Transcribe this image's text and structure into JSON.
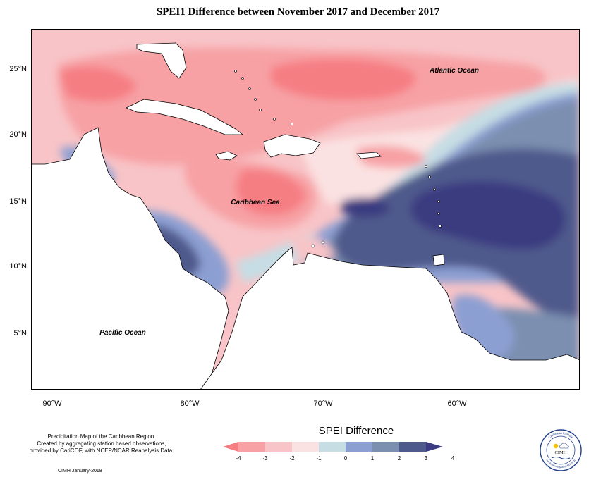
{
  "title": "SPEI1 Difference between November 2017 and December 2017",
  "map": {
    "lat_labels": [
      "25°N",
      "20°N",
      "15°N",
      "10°N",
      "5°N"
    ],
    "lon_labels": [
      "90°W",
      "80°W",
      "70°W",
      "60°W"
    ],
    "place_labels": {
      "atlantic": "Atlantic Ocean",
      "caribbean": "Caribbean Sea",
      "pacific": "Pacific Ocean"
    },
    "colors": {
      "c_m4": "#f57e83",
      "c_m3": "#f7a1a4",
      "c_m2": "#f8c4c7",
      "c_m1": "#fbe2e2",
      "c_0": "#c6dde4",
      "c_1": "#8c9fd2",
      "c_2": "#7b8fb0",
      "c_3": "#4f5a8c",
      "c_4": "#3a3b80",
      "land": "#ffffff"
    }
  },
  "legend": {
    "title": "SPEI Difference",
    "ticks": [
      "-4",
      "-3",
      "-2",
      "-1",
      "0",
      "1",
      "2",
      "3",
      "4"
    ],
    "colors": [
      "#f57e83",
      "#f7a1a4",
      "#f8c4c7",
      "#fbe2e2",
      "#c6dde4",
      "#8c9fd2",
      "#7b8fb0",
      "#4f5a8c",
      "#3a3b80"
    ]
  },
  "credits": {
    "line1": "Precipitation Map of the Caribbean Region.",
    "line2": "Created by aggregating station based observations,",
    "line3": "provided by CariCOF, with NCEP/NCAR Reanalysis Data.",
    "footer": "CIMH January-2018"
  },
  "logo": {
    "text": "CIMH",
    "ring_top": "Caribbean Institute",
    "ring_bottom": "for Meteorology and Hydrology"
  }
}
